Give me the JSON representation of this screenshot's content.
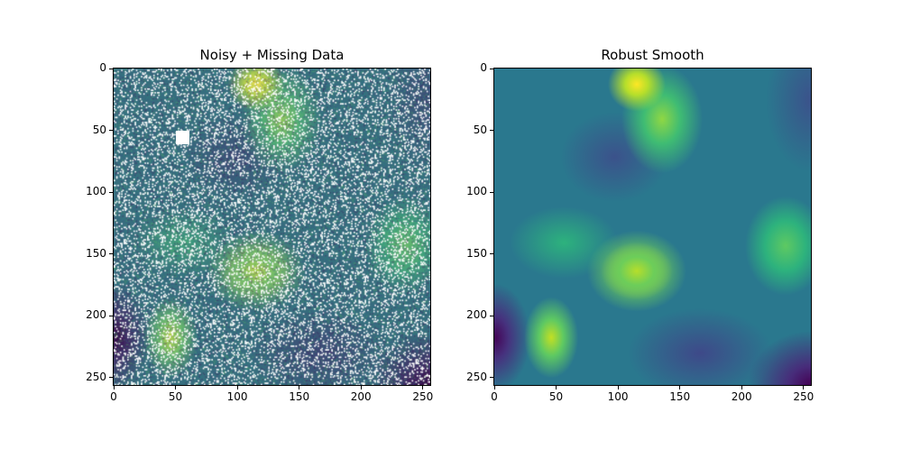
{
  "chart_data": [
    {
      "type": "heatmap",
      "title": "Noisy + Missing Data",
      "xlabel": "",
      "ylabel": "",
      "xlim": [
        0,
        256
      ],
      "ylim": [
        256,
        0
      ],
      "xticks": [
        0,
        50,
        100,
        150,
        200,
        250
      ],
      "yticks": [
        0,
        50,
        100,
        150,
        200,
        250
      ],
      "colormap": "viridis",
      "missing_fraction_approx": 0.15,
      "missing_block": {
        "x": [
          50,
          61
        ],
        "y": [
          50,
          61
        ]
      },
      "grid": false
    },
    {
      "type": "heatmap",
      "title": "Robust Smooth",
      "xlabel": "",
      "ylabel": "",
      "xlim": [
        0,
        256
      ],
      "ylim": [
        256,
        0
      ],
      "xticks": [
        0,
        50,
        100,
        150,
        200,
        250
      ],
      "yticks": [
        0,
        50,
        100,
        150,
        200,
        250
      ],
      "colormap": "viridis",
      "grid": false
    }
  ],
  "colors": {
    "viridis_dark": "#440154",
    "viridis_blue": "#31688e",
    "viridis_teal": "#21918c",
    "viridis_green": "#5ec962",
    "viridis_yellow": "#fde725"
  }
}
